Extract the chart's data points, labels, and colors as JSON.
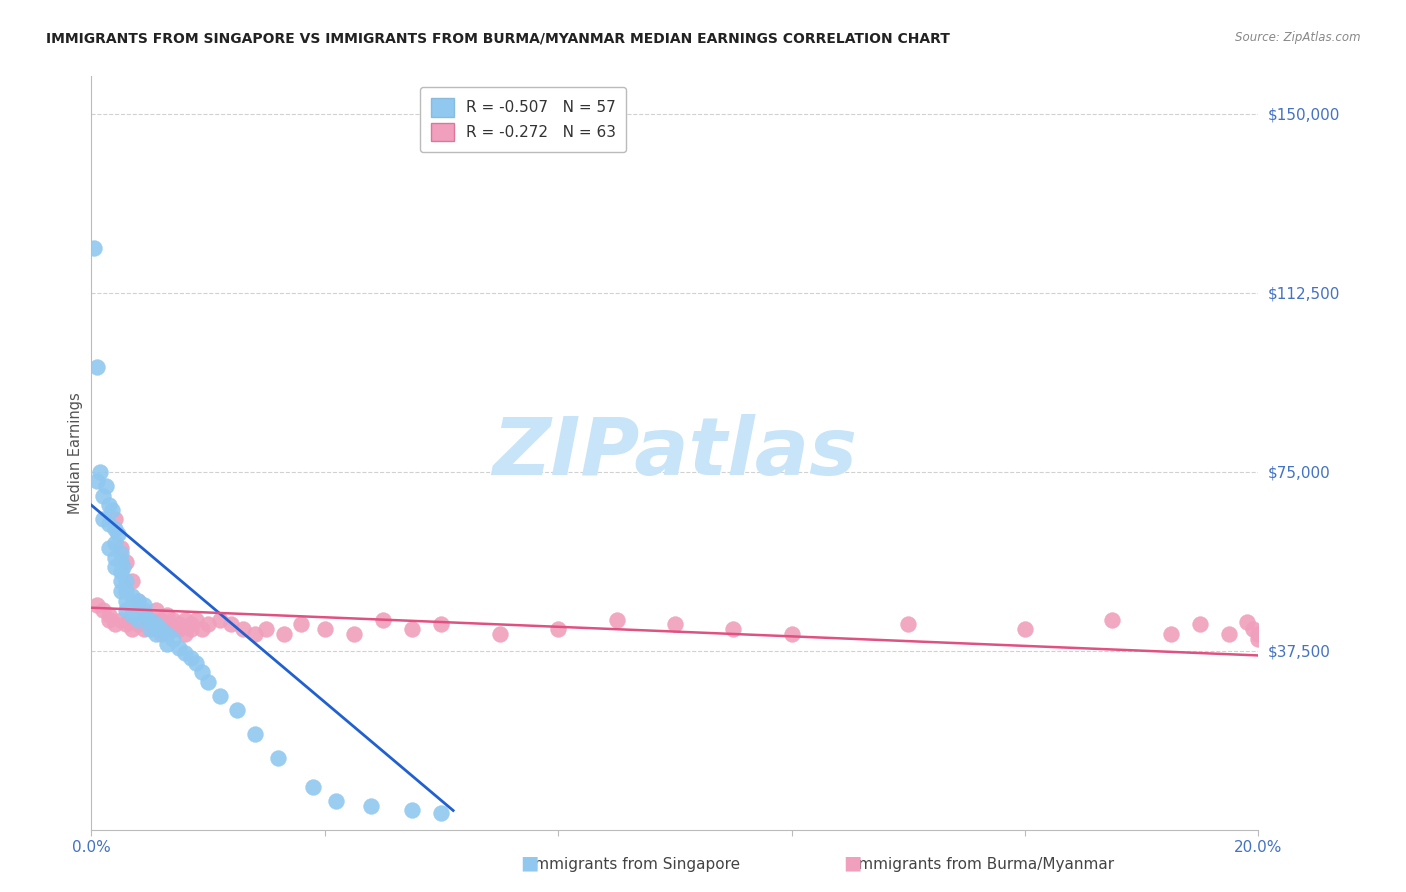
{
  "title": "IMMIGRANTS FROM SINGAPORE VS IMMIGRANTS FROM BURMA/MYANMAR MEDIAN EARNINGS CORRELATION CHART",
  "source": "Source: ZipAtlas.com",
  "ylabel": "Median Earnings",
  "xlim": [
    0.0,
    0.2
  ],
  "ylim": [
    0,
    158000
  ],
  "ytick_vals": [
    37500,
    75000,
    112500,
    150000
  ],
  "ytick_labels": [
    "$37,500",
    "$75,000",
    "$112,500",
    "$150,000"
  ],
  "xtick_vals": [
    0.0,
    0.04,
    0.08,
    0.12,
    0.16,
    0.2
  ],
  "xtick_labels": [
    "0.0%",
    "",
    "",
    "",
    "",
    "20.0%"
  ],
  "legend_r1": "R = -0.507   N = 57",
  "legend_r2": "R = -0.272   N = 63",
  "legend_footer_singapore": "Immigrants from Singapore",
  "legend_footer_burma": "Immigrants from Burma/Myanmar",
  "singapore_color": "#90C8F0",
  "burma_color": "#F0A0BC",
  "singapore_line_color": "#2060D0",
  "burma_line_color": "#E05080",
  "ytick_color": "#4472C4",
  "xtick_color": "#4472C4",
  "watermark_color": "#C8E4F8",
  "watermark_text": "ZIPatlas",
  "title_color": "#222222",
  "source_color": "#888888",
  "sing_x": [
    0.0005,
    0.001,
    0.001,
    0.0015,
    0.002,
    0.002,
    0.0025,
    0.003,
    0.003,
    0.003,
    0.0035,
    0.004,
    0.004,
    0.004,
    0.004,
    0.0045,
    0.005,
    0.005,
    0.005,
    0.005,
    0.005,
    0.0055,
    0.006,
    0.006,
    0.006,
    0.006,
    0.007,
    0.007,
    0.007,
    0.008,
    0.008,
    0.008,
    0.009,
    0.009,
    0.01,
    0.01,
    0.011,
    0.011,
    0.012,
    0.013,
    0.013,
    0.014,
    0.015,
    0.016,
    0.017,
    0.018,
    0.019,
    0.02,
    0.022,
    0.025,
    0.028,
    0.032,
    0.038,
    0.042,
    0.048,
    0.055,
    0.06
  ],
  "sing_y": [
    122000,
    97000,
    73000,
    75000,
    70000,
    65000,
    72000,
    68000,
    64000,
    59000,
    67000,
    63000,
    60000,
    57000,
    55000,
    62000,
    58000,
    56000,
    54000,
    52000,
    50000,
    55000,
    52000,
    50000,
    48000,
    46000,
    49000,
    47000,
    45000,
    48000,
    46000,
    44000,
    47000,
    45000,
    44000,
    42000,
    43000,
    41000,
    42000,
    41000,
    39000,
    40000,
    38000,
    37000,
    36000,
    35000,
    33000,
    31000,
    28000,
    25000,
    20000,
    15000,
    9000,
    6000,
    5000,
    4000,
    3500
  ],
  "burma_x": [
    0.001,
    0.002,
    0.003,
    0.003,
    0.004,
    0.004,
    0.005,
    0.005,
    0.006,
    0.006,
    0.007,
    0.007,
    0.008,
    0.008,
    0.009,
    0.009,
    0.01,
    0.01,
    0.011,
    0.011,
    0.012,
    0.012,
    0.013,
    0.013,
    0.014,
    0.014,
    0.015,
    0.015,
    0.016,
    0.016,
    0.017,
    0.017,
    0.018,
    0.019,
    0.02,
    0.022,
    0.024,
    0.026,
    0.028,
    0.03,
    0.033,
    0.036,
    0.04,
    0.045,
    0.05,
    0.055,
    0.06,
    0.07,
    0.08,
    0.09,
    0.1,
    0.11,
    0.12,
    0.14,
    0.16,
    0.175,
    0.185,
    0.19,
    0.195,
    0.198,
    0.199,
    0.2,
    0.2
  ],
  "burma_y": [
    47000,
    46000,
    45000,
    44000,
    65000,
    43000,
    59000,
    44000,
    56000,
    43000,
    52000,
    42000,
    48000,
    43000,
    46000,
    42000,
    44000,
    43000,
    46000,
    42000,
    44000,
    41000,
    45000,
    43000,
    44000,
    42000,
    43000,
    42000,
    44000,
    41000,
    43000,
    42000,
    44000,
    42000,
    43000,
    44000,
    43000,
    42000,
    41000,
    42000,
    41000,
    43000,
    42000,
    41000,
    44000,
    42000,
    43000,
    41000,
    42000,
    44000,
    43000,
    42000,
    41000,
    43000,
    42000,
    44000,
    41000,
    43000,
    41000,
    43500,
    42000,
    40000,
    41000
  ],
  "sing_line_x": [
    0.0,
    0.062
  ],
  "sing_line_y": [
    68000,
    4000
  ],
  "burma_line_x": [
    0.0,
    0.2
  ],
  "burma_line_y": [
    46500,
    36500
  ]
}
